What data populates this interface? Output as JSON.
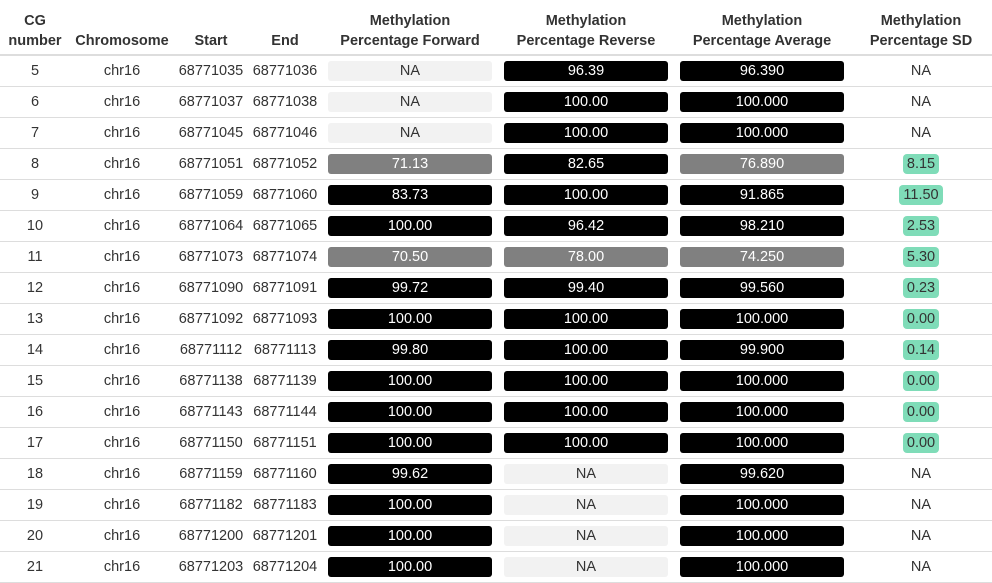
{
  "table": {
    "columns": [
      {
        "key": "cg",
        "lines": [
          "CG",
          "number"
        ]
      },
      {
        "key": "chr",
        "lines": [
          "",
          "Chromosome"
        ]
      },
      {
        "key": "start",
        "lines": [
          "",
          "Start"
        ]
      },
      {
        "key": "end",
        "lines": [
          "",
          "End"
        ]
      },
      {
        "key": "fwd",
        "lines": [
          "Methylation",
          "Percentage Forward"
        ]
      },
      {
        "key": "rev",
        "lines": [
          "Methylation",
          "Percentage Reverse"
        ]
      },
      {
        "key": "avg",
        "lines": [
          "Methylation",
          "Percentage Average"
        ]
      },
      {
        "key": "sd",
        "lines": [
          "Methylation",
          "Percentage SD"
        ]
      }
    ],
    "styles": {
      "high_color": "#000000",
      "mid_color": "#808080",
      "na_color": "#f2f2f2",
      "sd_highlight_color": "#7fdcb8"
    },
    "rows": [
      {
        "cg": "5",
        "chr": "chr16",
        "start": "68771035",
        "end": "68771036",
        "fwd": "NA",
        "rev": "96.39",
        "avg": "96.390",
        "sd": "NA"
      },
      {
        "cg": "6",
        "chr": "chr16",
        "start": "68771037",
        "end": "68771038",
        "fwd": "NA",
        "rev": "100.00",
        "avg": "100.000",
        "sd": "NA"
      },
      {
        "cg": "7",
        "chr": "chr16",
        "start": "68771045",
        "end": "68771046",
        "fwd": "NA",
        "rev": "100.00",
        "avg": "100.000",
        "sd": "NA"
      },
      {
        "cg": "8",
        "chr": "chr16",
        "start": "68771051",
        "end": "68771052",
        "fwd": "71.13",
        "rev": "82.65",
        "avg": "76.890",
        "sd": "8.15"
      },
      {
        "cg": "9",
        "chr": "chr16",
        "start": "68771059",
        "end": "68771060",
        "fwd": "83.73",
        "rev": "100.00",
        "avg": "91.865",
        "sd": "11.50"
      },
      {
        "cg": "10",
        "chr": "chr16",
        "start": "68771064",
        "end": "68771065",
        "fwd": "100.00",
        "rev": "96.42",
        "avg": "98.210",
        "sd": "2.53"
      },
      {
        "cg": "11",
        "chr": "chr16",
        "start": "68771073",
        "end": "68771074",
        "fwd": "70.50",
        "rev": "78.00",
        "avg": "74.250",
        "sd": "5.30"
      },
      {
        "cg": "12",
        "chr": "chr16",
        "start": "68771090",
        "end": "68771091",
        "fwd": "99.72",
        "rev": "99.40",
        "avg": "99.560",
        "sd": "0.23"
      },
      {
        "cg": "13",
        "chr": "chr16",
        "start": "68771092",
        "end": "68771093",
        "fwd": "100.00",
        "rev": "100.00",
        "avg": "100.000",
        "sd": "0.00"
      },
      {
        "cg": "14",
        "chr": "chr16",
        "start": "68771112",
        "end": "68771113",
        "fwd": "99.80",
        "rev": "100.00",
        "avg": "99.900",
        "sd": "0.14"
      },
      {
        "cg": "15",
        "chr": "chr16",
        "start": "68771138",
        "end": "68771139",
        "fwd": "100.00",
        "rev": "100.00",
        "avg": "100.000",
        "sd": "0.00"
      },
      {
        "cg": "16",
        "chr": "chr16",
        "start": "68771143",
        "end": "68771144",
        "fwd": "100.00",
        "rev": "100.00",
        "avg": "100.000",
        "sd": "0.00"
      },
      {
        "cg": "17",
        "chr": "chr16",
        "start": "68771150",
        "end": "68771151",
        "fwd": "100.00",
        "rev": "100.00",
        "avg": "100.000",
        "sd": "0.00"
      },
      {
        "cg": "18",
        "chr": "chr16",
        "start": "68771159",
        "end": "68771160",
        "fwd": "99.62",
        "rev": "NA",
        "avg": "99.620",
        "sd": "NA"
      },
      {
        "cg": "19",
        "chr": "chr16",
        "start": "68771182",
        "end": "68771183",
        "fwd": "100.00",
        "rev": "NA",
        "avg": "100.000",
        "sd": "NA"
      },
      {
        "cg": "20",
        "chr": "chr16",
        "start": "68771200",
        "end": "68771201",
        "fwd": "100.00",
        "rev": "NA",
        "avg": "100.000",
        "sd": "NA"
      },
      {
        "cg": "21",
        "chr": "chr16",
        "start": "68771203",
        "end": "68771204",
        "fwd": "100.00",
        "rev": "NA",
        "avg": "100.000",
        "sd": "NA"
      }
    ]
  }
}
